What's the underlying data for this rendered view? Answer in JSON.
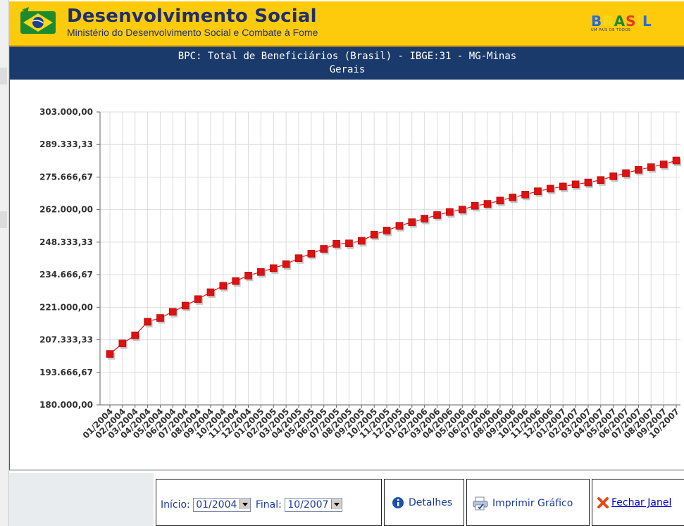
{
  "header": {
    "app_title": "Desenvolvimento Social",
    "app_subtitle": "Ministério do Desenvolvimento Social e Combate à Fome",
    "brasil_logo": "BRASIL",
    "brasil_tagline": "UM PAÍS DE TODOS"
  },
  "chart_title_line1": "BPC: Total de Beneficiários (Brasil) - IBGE:31 - MG-Minas",
  "chart_title_line2": "Gerais",
  "chart_data": {
    "type": "line",
    "title": "BPC: Total de Beneficiários (Brasil) - IBGE:31 - MG-Minas Gerais",
    "xlabel": "",
    "ylabel": "",
    "ylim": [
      180000,
      303000
    ],
    "yticks": [
      "180.000,00",
      "193.666,67",
      "207.333,33",
      "221.000,00",
      "234.666,67",
      "248.333,33",
      "262.000,00",
      "275.666,67",
      "289.333,33",
      "303.000,00"
    ],
    "grid": true,
    "categories": [
      "01/2004",
      "02/2004",
      "03/2004",
      "04/2004",
      "05/2004",
      "06/2004",
      "07/2004",
      "08/2004",
      "09/2004",
      "10/2004",
      "11/2004",
      "12/2004",
      "01/2005",
      "02/2005",
      "03/2005",
      "04/2005",
      "05/2005",
      "06/2005",
      "07/2005",
      "08/2005",
      "09/2005",
      "10/2005",
      "11/2005",
      "12/2005",
      "01/2006",
      "02/2006",
      "03/2006",
      "04/2006",
      "05/2006",
      "06/2006",
      "07/2006",
      "08/2006",
      "09/2006",
      "10/2006",
      "11/2006",
      "12/2006",
      "01/2007",
      "02/2007",
      "03/2007",
      "04/2007",
      "05/2007",
      "06/2007",
      "07/2007",
      "08/2007",
      "09/2007",
      "10/2007"
    ],
    "series": [
      {
        "color": "#dd1111",
        "values": [
          201400,
          205800,
          209200,
          214900,
          216500,
          219100,
          221700,
          224400,
          227300,
          230000,
          232000,
          234300,
          235800,
          237400,
          239100,
          241600,
          243500,
          245500,
          247600,
          247800,
          248900,
          251500,
          253200,
          255200,
          256700,
          258200,
          259700,
          261000,
          262000,
          263600,
          264400,
          265800,
          267100,
          268300,
          269700,
          270800,
          271700,
          272600,
          273400,
          274400,
          276000,
          277300,
          278700,
          279800,
          281000,
          282600
        ]
      }
    ]
  },
  "controls": {
    "inicio_label": "Início:",
    "inicio_value": "01/2004",
    "final_label": "Final:",
    "final_value": "10/2007",
    "detalhes_label": "Detalhes",
    "imprimir_label": "Imprimir Gráfico",
    "fechar_label": "Fechar Janel"
  },
  "colors": {
    "header_bg": "#fecb0c",
    "title_bar_bg": "#1a3a6b",
    "series": "#dd1111"
  },
  "icons": {
    "info": "info-icon",
    "print": "printer-icon",
    "close": "close-x-icon",
    "logo": "brazil-flag-icon"
  }
}
